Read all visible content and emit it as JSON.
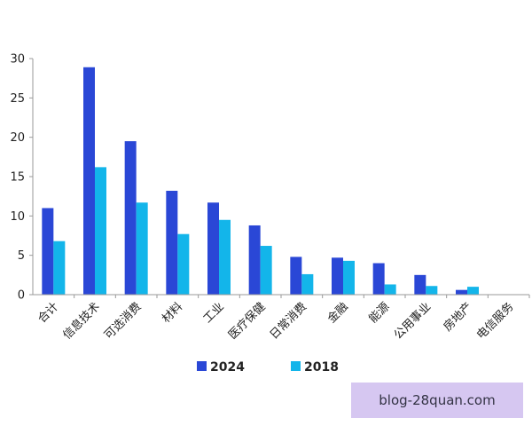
{
  "chart_data": {
    "type": "bar",
    "categories": [
      "合计",
      "信息技术",
      "可选消费",
      "材料",
      "工业",
      "医疗保健",
      "日常消费",
      "金融",
      "能源",
      "公用事业",
      "房地产",
      "电信服务"
    ],
    "series": [
      {
        "name": "2024",
        "color": "#2a47d6",
        "values": [
          11.0,
          28.9,
          19.5,
          13.2,
          11.7,
          8.8,
          4.8,
          4.7,
          4.0,
          2.5,
          0.6,
          null
        ]
      },
      {
        "name": "2018",
        "color": "#13b5ea",
        "values": [
          6.8,
          16.2,
          11.7,
          7.7,
          9.5,
          6.2,
          2.6,
          4.3,
          1.3,
          1.1,
          1.0,
          null
        ]
      }
    ],
    "ylim": [
      0,
      30
    ],
    "yticks": [
      0,
      5,
      10,
      15,
      20,
      25,
      30
    ],
    "grid": false,
    "legend": "bottom-center"
  },
  "watermark": "blog-28quan.com"
}
